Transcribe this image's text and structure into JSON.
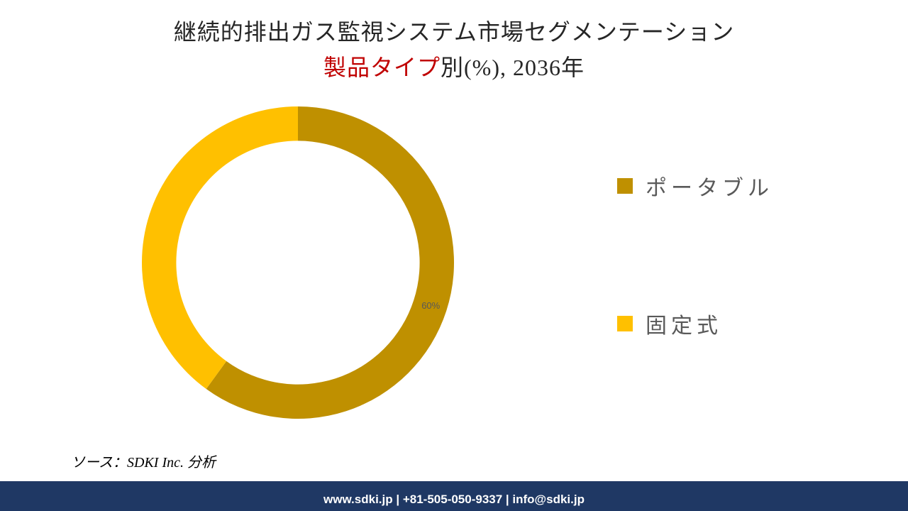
{
  "title": {
    "line1": "継続的排出ガス監視システム市場セグメンテーション",
    "line2_red": "製品タイプ",
    "line2_rest": "別(%), 2036年",
    "fontsize": 32,
    "color": "#262626",
    "red_color": "#c00000"
  },
  "chart": {
    "type": "donut",
    "categories": [
      "ポータブル",
      "固定式"
    ],
    "values": [
      60,
      40
    ],
    "colors": [
      "#bf9000",
      "#ffc000"
    ],
    "start_angle_deg": 0,
    "inner_radius_ratio": 0.78,
    "outer_radius": 220,
    "background_color": "#ffffff",
    "show_labels": [
      true,
      false
    ],
    "label_text": "60%",
    "label_fontsize": 13,
    "label_color": "#595959"
  },
  "legend": {
    "items": [
      {
        "label": "ポータブル",
        "color": "#bf9000"
      },
      {
        "label": "固定式",
        "color": "#ffc000"
      }
    ],
    "fontsize": 30,
    "text_color": "#595959",
    "swatch_size": 22
  },
  "source": {
    "text": "ソース：SDKI Inc. 分析",
    "fontsize": 20,
    "color": "#000000",
    "italic": true
  },
  "footer": {
    "text": "www.sdki.jp | +81-505-050-9337 | info@sdki.jp",
    "background_color": "#1f3864",
    "text_color": "#ffffff",
    "fontsize": 17,
    "bold": true
  }
}
